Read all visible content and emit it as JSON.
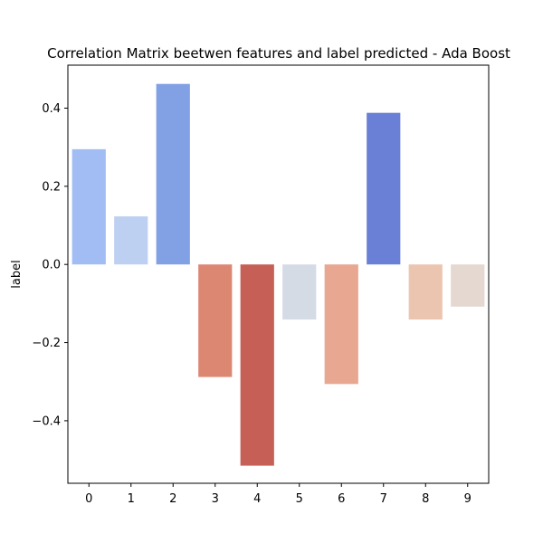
{
  "chart_data": {
    "type": "bar",
    "title": "Correlation Matrix beetwen features and label predicted - Ada Boost",
    "xlabel": "",
    "ylabel": "label",
    "categories": [
      "0",
      "1",
      "2",
      "3",
      "4",
      "5",
      "6",
      "7",
      "8",
      "9"
    ],
    "values": [
      0.295,
      0.123,
      0.462,
      -0.288,
      -0.515,
      -0.141,
      -0.306,
      0.388,
      -0.141,
      -0.108
    ],
    "colors": [
      "#a2bdf4",
      "#bed0f2",
      "#82a0e4",
      "#dc8772",
      "#c65f55",
      "#d5dbe5",
      "#e8a790",
      "#6a80d6",
      "#ecc5b0",
      "#e4d8d0"
    ],
    "ylim": [
      -0.56,
      0.51
    ],
    "yticks": [
      -0.4,
      -0.2,
      0.0,
      0.2,
      0.4
    ],
    "ytick_labels": [
      "−0.4",
      "−0.2",
      "0.0",
      "0.2",
      "0.4"
    ],
    "grid": false,
    "legend": "none"
  }
}
